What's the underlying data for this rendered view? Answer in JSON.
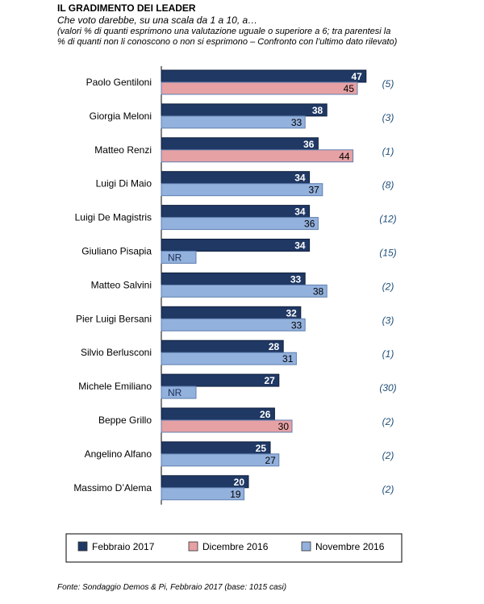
{
  "header": {
    "title": "IL GRADIMENTO DEI LEADER",
    "subtitle": "Che voto darebbe, su una scala da 1 a 10, a…",
    "note_line1": "(valori % di quanti esprimono una valutazione uguale o superiore a 6; tra parentesi la",
    "note_line2": "% di quanti non li conoscono o non si esprimono – Confronto con l’ultimo dato rilevato)"
  },
  "footer": {
    "source": "Fonte: Sondaggio Demos & Pi, Febbraio 2017 (base: 1015 casi)"
  },
  "chart_data": {
    "type": "bar",
    "orientation": "horizontal",
    "categories": [
      "Paolo Gentiloni",
      "Giorgia Meloni",
      "Matteo Renzi",
      "Luigi Di Maio",
      "Luigi De Magistris",
      "Giuliano Pisapia",
      "Matteo Salvini",
      "Pier Luigi Bersani",
      "Silvio Berlusconi",
      "Michele Emiliano",
      "Beppe Grillo",
      "Angelino Alfano",
      "Massimo D’Alema"
    ],
    "series": [
      {
        "name": "Febbraio 2017",
        "values": [
          47,
          38,
          36,
          34,
          34,
          34,
          33,
          32,
          28,
          27,
          26,
          25,
          20
        ]
      }
    ],
    "comparison": {
      "values": [
        45,
        33,
        44,
        37,
        36,
        null,
        38,
        33,
        31,
        null,
        30,
        27,
        19
      ],
      "period": [
        "Dicembre 2016",
        "Novembre 2016",
        "Dicembre 2016",
        "Novembre 2016",
        "Novembre 2016",
        "Novembre 2016",
        "Novembre 2016",
        "Novembre 2016",
        "Novembre 2016",
        "Novembre 2016",
        "Dicembre 2016",
        "Novembre 2016",
        "Novembre 2016"
      ],
      "missing_label": "NR"
    },
    "unknown_pct": [
      "(5)",
      "(3)",
      "(1)",
      "(8)",
      "(12)",
      "(15)",
      "(2)",
      "(3)",
      "(1)",
      "(30)",
      "(2)",
      "(2)",
      "(2)"
    ],
    "legend": [
      {
        "name": "Febbraio 2017",
        "color": "#1f3864"
      },
      {
        "name": "Dicembre 2016",
        "color": "#e6a1a4"
      },
      {
        "name": "Novembre 2016",
        "color": "#93b1dd"
      }
    ],
    "legend_position": "bottom",
    "xlim": [
      0,
      100
    ],
    "grid": false,
    "xlabel": "",
    "ylabel": "",
    "colors": {
      "Febbraio 2017": "#1f3864",
      "Dicembre 2016": "#e6a1a4",
      "Novembre 2016": "#93b1dd"
    }
  }
}
